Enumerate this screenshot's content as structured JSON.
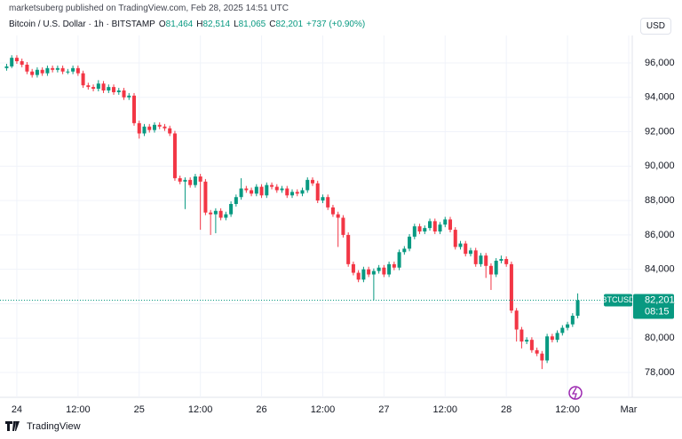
{
  "chart_data": {
    "type": "candlestick",
    "attribution": "marketsuberg published on TradingView.com, Feb 28, 2025 14:51 UTC",
    "title": "Bitcoin / U.S. Dollar · 1h · BITSTAMP",
    "ohlc_header": [
      {
        "label": "O",
        "value": "81,464"
      },
      {
        "label": "H",
        "value": "82,514"
      },
      {
        "label": "L",
        "value": "81,065"
      },
      {
        "label": "C",
        "value": "82,201"
      }
    ],
    "change": "+737 (+0.90%)",
    "currency": "USD",
    "symbol": "BTCUSD",
    "last_price": {
      "value": 82201,
      "label": "82,201"
    },
    "countdown": "08:15",
    "brand": "TradingView",
    "up_color": "#089981",
    "down_color": "#f23645",
    "grid": true,
    "xlim": [
      -3.3,
      120.7
    ],
    "xticks": [
      {
        "value": 0,
        "label": "24"
      },
      {
        "value": 12,
        "label": "12:00"
      },
      {
        "value": 24,
        "label": "25"
      },
      {
        "value": 36,
        "label": "12:00"
      },
      {
        "value": 48,
        "label": "26"
      },
      {
        "value": 60,
        "label": "12:00"
      },
      {
        "value": 72,
        "label": "27"
      },
      {
        "value": 84,
        "label": "12:00"
      },
      {
        "value": 96,
        "label": "28"
      },
      {
        "value": 108,
        "label": "12:00"
      },
      {
        "value": 120,
        "label": "Mar"
      }
    ],
    "ylim": [
      76557,
      97598
    ],
    "yticks": [
      {
        "value": 78000,
        "label": "78,000"
      },
      {
        "value": 80000,
        "label": "80,000"
      },
      {
        "value": 82000,
        "label": "82,000"
      },
      {
        "value": 84000,
        "label": "84,000"
      },
      {
        "value": 86000,
        "label": "86,000"
      },
      {
        "value": 88000,
        "label": "88,000"
      },
      {
        "value": 90000,
        "label": "90,000"
      },
      {
        "value": 92000,
        "label": "92,000"
      },
      {
        "value": 94000,
        "label": "94,000"
      },
      {
        "value": 96000,
        "label": "96,000"
      }
    ],
    "x": [
      -2,
      -1,
      0,
      1,
      2,
      3,
      4,
      5,
      6,
      7,
      8,
      9,
      10,
      11,
      12,
      13,
      14,
      15,
      16,
      17,
      18,
      19,
      20,
      21,
      22,
      23,
      24,
      25,
      26,
      27,
      28,
      29,
      30,
      31,
      32,
      33,
      34,
      35,
      36,
      37,
      38,
      39,
      40,
      41,
      42,
      43,
      44,
      45,
      46,
      47,
      48,
      49,
      50,
      51,
      52,
      53,
      54,
      55,
      56,
      57,
      58,
      59,
      60,
      61,
      62,
      63,
      64,
      65,
      66,
      67,
      68,
      69,
      70,
      71,
      72,
      73,
      74,
      75,
      76,
      77,
      78,
      79,
      80,
      81,
      82,
      83,
      84,
      85,
      86,
      87,
      88,
      89,
      90,
      91,
      92,
      93,
      94,
      95,
      96,
      97,
      98,
      99,
      100,
      101,
      102,
      103,
      104,
      105,
      106,
      107,
      108,
      109,
      110
    ],
    "open": [
      95700,
      95800,
      96300,
      96100,
      95900,
      95500,
      95300,
      95600,
      95400,
      95700,
      95600,
      95700,
      95500,
      95500,
      95700,
      95400,
      94700,
      94600,
      94500,
      94800,
      94400,
      94600,
      94300,
      94400,
      94000,
      94100,
      92500,
      91900,
      92300,
      92100,
      92400,
      92300,
      92200,
      91900,
      89300,
      89100,
      89200,
      88900,
      89400,
      89100,
      87300,
      87200,
      87400,
      87000,
      87200,
      87800,
      88200,
      88700,
      88600,
      88400,
      88800,
      88300,
      88900,
      88800,
      88600,
      88700,
      88300,
      88500,
      88400,
      88600,
      89200,
      89000,
      88000,
      88200,
      87600,
      87200,
      87000,
      86000,
      84300,
      83800,
      83400,
      84000,
      83700,
      83900,
      84100,
      83700,
      84300,
      84100,
      85000,
      85200,
      85900,
      86500,
      86200,
      86400,
      86800,
      86200,
      86600,
      86900,
      86300,
      85300,
      85500,
      84900,
      85100,
      84300,
      84800,
      84200,
      83700,
      84500,
      84600,
      84300,
      81600,
      80500,
      79800,
      79900,
      79300,
      79100,
      78700,
      80100,
      79900,
      80300,
      80600,
      80800,
      81300
    ],
    "high": [
      95950,
      96450,
      96450,
      96250,
      96050,
      95650,
      95750,
      95750,
      95850,
      95850,
      95850,
      95850,
      95650,
      95850,
      95850,
      95550,
      94850,
      94750,
      95000,
      94950,
      94750,
      94750,
      94550,
      94550,
      94250,
      94250,
      92650,
      92450,
      92450,
      92550,
      92550,
      92450,
      92350,
      92050,
      89450,
      89350,
      89350,
      89550,
      89550,
      89250,
      87450,
      87550,
      87550,
      87350,
      87950,
      88350,
      89300,
      88850,
      88750,
      88950,
      88950,
      89050,
      89050,
      88950,
      88850,
      88850,
      88650,
      88650,
      88750,
      89350,
      89350,
      89150,
      88350,
      88350,
      87750,
      87350,
      87150,
      86150,
      84450,
      83950,
      84150,
      84150,
      84050,
      84250,
      84250,
      84450,
      84450,
      85150,
      85350,
      86050,
      86650,
      86650,
      86550,
      86950,
      86950,
      86750,
      87050,
      87050,
      86450,
      85650,
      85650,
      85250,
      85250,
      84950,
      84950,
      84350,
      84650,
      84800,
      84750,
      84450,
      81750,
      80650,
      80050,
      80050,
      79450,
      79250,
      80250,
      80250,
      80450,
      80750,
      80950,
      81450,
      82600
    ],
    "low": [
      95550,
      95700,
      95950,
      95750,
      95350,
      95150,
      95150,
      95250,
      95250,
      95450,
      95450,
      95350,
      95350,
      95350,
      95250,
      94550,
      94450,
      94350,
      94350,
      94250,
      94250,
      94150,
      94150,
      93850,
      93850,
      92350,
      91600,
      91750,
      91950,
      91950,
      92150,
      92050,
      91750,
      89150,
      88950,
      87500,
      88750,
      88750,
      86300,
      87150,
      86000,
      86100,
      86850,
      86850,
      87050,
      87650,
      88050,
      88450,
      88250,
      88250,
      88150,
      88150,
      88650,
      88450,
      88450,
      88150,
      88150,
      88250,
      88250,
      88450,
      88850,
      87850,
      87850,
      87450,
      87050,
      85300,
      85850,
      84150,
      83650,
      83250,
      83250,
      83550,
      82200,
      83750,
      83550,
      83550,
      83950,
      83950,
      84850,
      85050,
      85750,
      86050,
      86050,
      86250,
      86050,
      86050,
      86450,
      86150,
      85150,
      85150,
      84750,
      84750,
      84150,
      84150,
      83500,
      82800,
      83550,
      84350,
      84150,
      81450,
      79800,
      79400,
      79650,
      79150,
      78950,
      78200,
      78550,
      79750,
      79750,
      80150,
      80450,
      80650,
      81150
    ],
    "close": [
      95800,
      96300,
      96100,
      95900,
      95500,
      95300,
      95600,
      95400,
      95700,
      95600,
      95700,
      95500,
      95500,
      95700,
      95400,
      94700,
      94600,
      94500,
      94800,
      94400,
      94600,
      94300,
      94400,
      94000,
      94100,
      92500,
      91900,
      92300,
      92100,
      92400,
      92300,
      92200,
      91900,
      89300,
      89100,
      89200,
      88900,
      89400,
      89100,
      87300,
      87200,
      87400,
      87000,
      87200,
      87800,
      88200,
      88700,
      88600,
      88400,
      88800,
      88300,
      88900,
      88800,
      88600,
      88700,
      88300,
      88500,
      88400,
      88600,
      89200,
      89000,
      88000,
      88200,
      87600,
      87200,
      87000,
      86000,
      84300,
      83800,
      83400,
      84000,
      83700,
      83900,
      84100,
      83700,
      84300,
      84100,
      85000,
      85200,
      85900,
      86500,
      86200,
      86400,
      86800,
      86200,
      86600,
      86900,
      86300,
      85300,
      85500,
      84900,
      85100,
      84300,
      84800,
      84200,
      83700,
      84500,
      84600,
      84300,
      81600,
      80500,
      79800,
      79900,
      79300,
      79100,
      78700,
      80100,
      79900,
      80300,
      80600,
      80800,
      81300,
      82201
    ]
  }
}
